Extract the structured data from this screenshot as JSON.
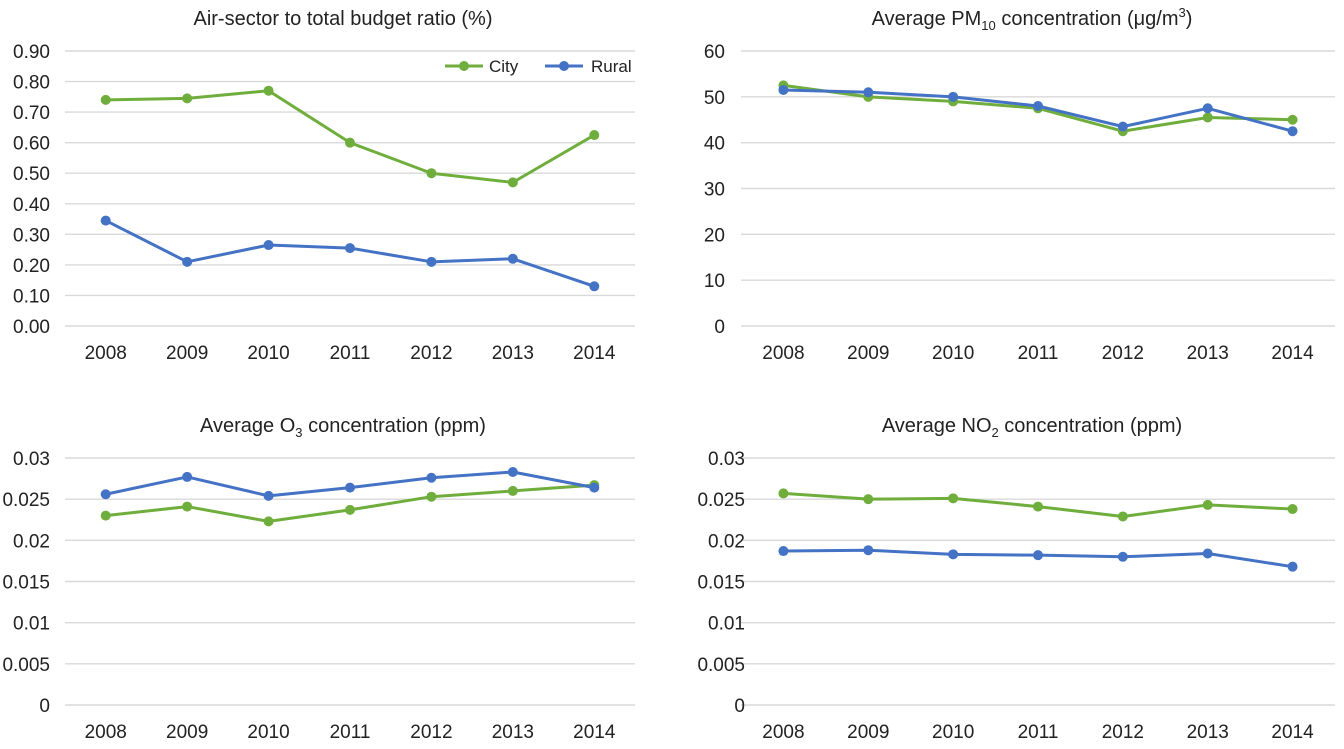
{
  "colors": {
    "city": "#6fae3c",
    "rural": "#4472c4"
  },
  "chart_data": [
    {
      "type": "line",
      "title": "Air-sector to total budget ratio (%)",
      "categories": [
        "2008",
        "2009",
        "2010",
        "2011",
        "2012",
        "2013",
        "2014"
      ],
      "yticks": [
        "0.00",
        "0.10",
        "0.20",
        "0.30",
        "0.40",
        "0.50",
        "0.60",
        "0.70",
        "0.80",
        "0.90"
      ],
      "ylim": [
        0,
        0.9
      ],
      "legend": "top-right",
      "series": [
        {
          "name": "City",
          "values": [
            0.74,
            0.745,
            0.77,
            0.6,
            0.5,
            0.47,
            0.625
          ]
        },
        {
          "name": "Rural",
          "values": [
            0.345,
            0.21,
            0.265,
            0.255,
            0.21,
            0.22,
            0.13
          ]
        }
      ]
    },
    {
      "type": "line",
      "title": {
        "pre": "Average PM",
        "sub": "10",
        "post": " concentration (μg/m",
        "sup": "3",
        "end": ")"
      },
      "categories": [
        "2008",
        "2009",
        "2010",
        "2011",
        "2012",
        "2013",
        "2014"
      ],
      "yticks": [
        "0",
        "10",
        "20",
        "30",
        "40",
        "50",
        "60"
      ],
      "ylim": [
        0,
        60
      ],
      "series": [
        {
          "name": "City",
          "values": [
            52.5,
            50.0,
            49.0,
            47.5,
            42.5,
            45.5,
            45.0
          ]
        },
        {
          "name": "Rural",
          "values": [
            51.5,
            51.0,
            50.0,
            48.0,
            43.5,
            47.5,
            42.5
          ]
        }
      ]
    },
    {
      "type": "line",
      "title": {
        "pre": "Average O",
        "sub": "3",
        "post": " concentration (ppm)"
      },
      "categories": [
        "2008",
        "2009",
        "2010",
        "2011",
        "2012",
        "2013",
        "2014"
      ],
      "yticks": [
        "0",
        "0.005",
        "0.01",
        "0.015",
        "0.02",
        "0.025",
        "0.03"
      ],
      "ylim": [
        0,
        0.03
      ],
      "series": [
        {
          "name": "City",
          "values": [
            0.023,
            0.0241,
            0.0223,
            0.0237,
            0.0253,
            0.026,
            0.0267
          ]
        },
        {
          "name": "Rural",
          "values": [
            0.0256,
            0.0277,
            0.0254,
            0.0264,
            0.0276,
            0.0283,
            0.0264
          ]
        }
      ]
    },
    {
      "type": "line",
      "title": {
        "pre": "Average NO",
        "sub": "2",
        "post": " concentration (ppm)"
      },
      "categories": [
        "2008",
        "2009",
        "2010",
        "2011",
        "2012",
        "2013",
        "2014"
      ],
      "yticks": [
        "0",
        "0.005",
        "0.01",
        "0.015",
        "0.02",
        "0.025",
        "0.03"
      ],
      "ylim": [
        0,
        0.03
      ],
      "series": [
        {
          "name": "City",
          "values": [
            0.0257,
            0.025,
            0.0251,
            0.0241,
            0.0229,
            0.0243,
            0.0238
          ]
        },
        {
          "name": "Rural",
          "values": [
            0.0187,
            0.0188,
            0.0183,
            0.0182,
            0.018,
            0.0184,
            0.0168
          ]
        }
      ]
    }
  ]
}
